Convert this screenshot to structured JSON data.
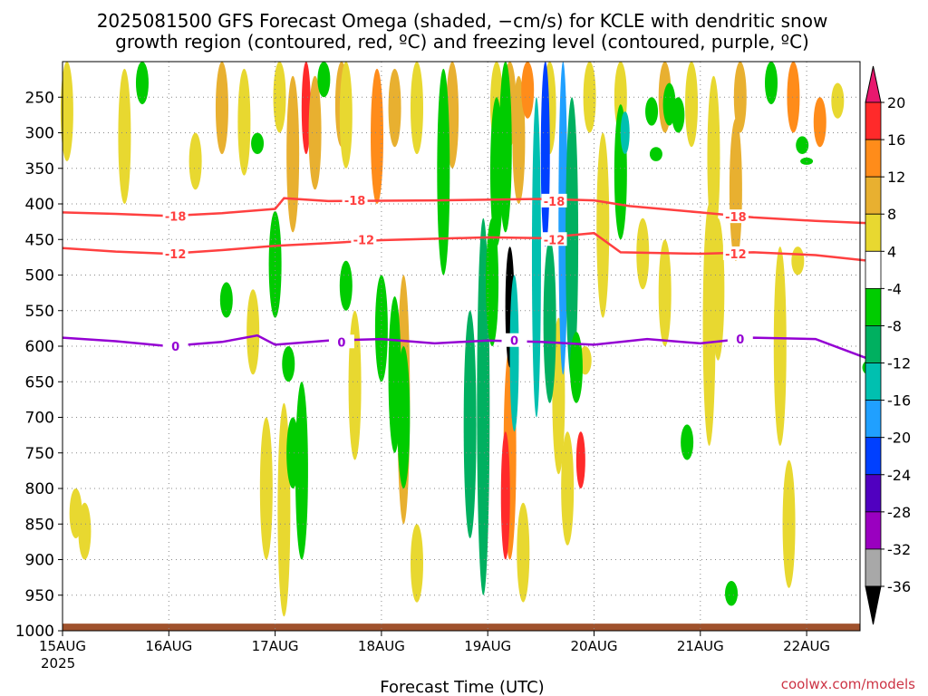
{
  "title_line1": "2025081500 GFS Forecast Omega (shaded, −cm/s) for KCLE with dendritic snow",
  "title_line2": "growth region (contoured, red, ºC) and freezing level (contoured, purple, ºC)",
  "xlabel": "Forecast Time (UTC)",
  "credit": "coolwx.com/models",
  "colors": {
    "dgz": "#ff4040",
    "freezing": "#9400d3",
    "ground": "#a0522d",
    "grid": "#888888"
  },
  "chart_data": {
    "type": "heatmap",
    "x_ticks": [
      {
        "label": "15AUG",
        "sublabel": "2025",
        "t": 0
      },
      {
        "label": "16AUG",
        "t": 24
      },
      {
        "label": "17AUG",
        "t": 48
      },
      {
        "label": "18AUG",
        "t": 72
      },
      {
        "label": "19AUG",
        "t": 96
      },
      {
        "label": "20AUG",
        "t": 120
      },
      {
        "label": "21AUG",
        "t": 144
      },
      {
        "label": "22AUG",
        "t": 168
      }
    ],
    "x_range_hours": [
      0,
      182
    ],
    "y_ticks": [
      250,
      300,
      350,
      400,
      450,
      500,
      550,
      600,
      650,
      700,
      750,
      800,
      850,
      900,
      950,
      1000
    ],
    "y_range_hpa": [
      200,
      1000
    ],
    "colorbar": {
      "labels": [
        "20",
        "16",
        "12",
        "8",
        "4",
        "-4",
        "-8",
        "-12",
        "-16",
        "-20",
        "-24",
        "-28",
        "-32",
        "-36"
      ],
      "colors": [
        "#ff2a2a",
        "#ff8c1a",
        "#e8b030",
        "#e8d830",
        "#ffffff",
        "#00cc00",
        "#00b060",
        "#00c0b0",
        "#20a0ff",
        "#0040ff",
        "#5000c0",
        "#9a00c0",
        "#a8a8a8"
      ],
      "top_color": "#e8186e",
      "bottom_color": "#000000"
    },
    "contours": [
      {
        "label": "-18",
        "points": [
          [
            0,
            412
          ],
          [
            12,
            414
          ],
          [
            24,
            417
          ],
          [
            36,
            413
          ],
          [
            48,
            407
          ],
          [
            50,
            392
          ],
          [
            60,
            396
          ],
          [
            84,
            395
          ],
          [
            108,
            393
          ],
          [
            120,
            395
          ],
          [
            128,
            403
          ],
          [
            144,
            412
          ],
          [
            156,
            419
          ],
          [
            170,
            424
          ],
          [
            182,
            427
          ]
        ]
      },
      {
        "label": "-12",
        "points": [
          [
            0,
            462
          ],
          [
            12,
            467
          ],
          [
            24,
            470
          ],
          [
            36,
            465
          ],
          [
            48,
            459
          ],
          [
            60,
            455
          ],
          [
            72,
            451
          ],
          [
            96,
            447
          ],
          [
            108,
            448
          ],
          [
            120,
            441
          ],
          [
            126,
            468
          ],
          [
            144,
            470
          ],
          [
            156,
            468
          ],
          [
            170,
            472
          ],
          [
            182,
            480
          ]
        ]
      },
      {
        "label": "0",
        "points": [
          [
            0,
            588
          ],
          [
            12,
            593
          ],
          [
            24,
            600
          ],
          [
            36,
            594
          ],
          [
            44,
            585
          ],
          [
            48,
            598
          ],
          [
            60,
            592
          ],
          [
            72,
            590
          ],
          [
            84,
            596
          ],
          [
            96,
            592
          ],
          [
            108,
            594
          ],
          [
            120,
            598
          ],
          [
            132,
            590
          ],
          [
            144,
            596
          ],
          [
            156,
            588
          ],
          [
            170,
            590
          ],
          [
            182,
            618
          ]
        ]
      }
    ],
    "contour_label_positions": [
      {
        "label": "-18",
        "t": 25.5,
        "p": 417
      },
      {
        "label": "-18",
        "t": 66,
        "p": 395
      },
      {
        "label": "-18",
        "t": 111,
        "p": 396
      },
      {
        "label": "-18",
        "t": 152,
        "p": 418
      },
      {
        "label": "-12",
        "t": 25.5,
        "p": 470
      },
      {
        "label": "-12",
        "t": 68,
        "p": 450
      },
      {
        "label": "-12",
        "t": 111,
        "p": 450
      },
      {
        "label": "-12",
        "t": 152,
        "p": 470
      },
      {
        "label": "0",
        "t": 25.5,
        "p": 600
      },
      {
        "label": "0",
        "t": 63,
        "p": 594
      },
      {
        "label": "0",
        "t": 102,
        "p": 592
      },
      {
        "label": "0",
        "t": 153,
        "p": 590
      }
    ],
    "omega_blobs": [
      {
        "t": 1,
        "p1": 200,
        "p2": 340,
        "v": 6
      },
      {
        "t": 14,
        "p1": 210,
        "p2": 400,
        "v": 6
      },
      {
        "t": 30,
        "p1": 300,
        "p2": 380,
        "v": 6
      },
      {
        "t": 36,
        "p1": 200,
        "p2": 330,
        "v": 10
      },
      {
        "t": 41,
        "p1": 210,
        "p2": 360,
        "v": 6
      },
      {
        "t": 43,
        "p1": 520,
        "p2": 640,
        "v": 6
      },
      {
        "t": 49,
        "p1": 200,
        "p2": 300,
        "v": 6
      },
      {
        "t": 52,
        "p1": 220,
        "p2": 440,
        "v": 8
      },
      {
        "t": 55,
        "p1": 200,
        "p2": 330,
        "v": 18
      },
      {
        "t": 57,
        "p1": 220,
        "p2": 380,
        "v": 10
      },
      {
        "t": 63,
        "p1": 200,
        "p2": 320,
        "v": 8
      },
      {
        "t": 64,
        "p1": 200,
        "p2": 350,
        "v": 6
      },
      {
        "t": 71,
        "p1": 210,
        "p2": 400,
        "v": 12
      },
      {
        "t": 75,
        "p1": 210,
        "p2": 320,
        "v": 8
      },
      {
        "t": 77,
        "p1": 500,
        "p2": 850,
        "v": 8
      },
      {
        "t": 80,
        "p1": 200,
        "p2": 330,
        "v": 6
      },
      {
        "t": 88,
        "p1": 200,
        "p2": 350,
        "v": 8
      },
      {
        "t": 98,
        "p1": 200,
        "p2": 320,
        "v": 6
      },
      {
        "t": 101,
        "p1": 200,
        "p2": 320,
        "v": 8
      },
      {
        "t": 103,
        "p1": 220,
        "p2": 400,
        "v": 10
      },
      {
        "t": 105,
        "p1": 200,
        "p2": 280,
        "v": 12
      },
      {
        "t": 110,
        "p1": 200,
        "p2": 330,
        "v": 6
      },
      {
        "t": 119,
        "p1": 200,
        "p2": 300,
        "v": 6
      },
      {
        "t": 122,
        "p1": 300,
        "p2": 560,
        "v": 6
      },
      {
        "t": 126,
        "p1": 200,
        "p2": 300,
        "v": 6
      },
      {
        "t": 131,
        "p1": 420,
        "p2": 520,
        "v": 6
      },
      {
        "t": 136,
        "p1": 200,
        "p2": 300,
        "v": 10
      },
      {
        "t": 142,
        "p1": 200,
        "p2": 320,
        "v": 6
      },
      {
        "t": 147,
        "p1": 220,
        "p2": 450,
        "v": 6
      },
      {
        "t": 152,
        "p1": 280,
        "p2": 480,
        "v": 10
      },
      {
        "t": 153,
        "p1": 200,
        "p2": 300,
        "v": 8
      },
      {
        "t": 165,
        "p1": 200,
        "p2": 300,
        "v": 12
      },
      {
        "t": 166,
        "p1": 460,
        "p2": 500,
        "v": 6
      },
      {
        "t": 171,
        "p1": 250,
        "p2": 320,
        "v": 12
      },
      {
        "t": 175,
        "p1": 230,
        "p2": 280,
        "v": 6
      },
      {
        "t": 3,
        "p1": 800,
        "p2": 870,
        "v": 6
      },
      {
        "t": 5,
        "p1": 820,
        "p2": 900,
        "v": 6
      },
      {
        "t": 46,
        "p1": 700,
        "p2": 900,
        "v": 6
      },
      {
        "t": 50,
        "p1": 680,
        "p2": 980,
        "v": 6
      },
      {
        "t": 66,
        "p1": 550,
        "p2": 760,
        "v": 6
      },
      {
        "t": 101,
        "p1": 600,
        "p2": 900,
        "v": 12
      },
      {
        "t": 100,
        "p1": 720,
        "p2": 900,
        "v": 18
      },
      {
        "t": 112,
        "p1": 560,
        "p2": 780,
        "v": 6
      },
      {
        "t": 117,
        "p1": 720,
        "p2": 800,
        "v": 16
      },
      {
        "t": 114,
        "p1": 720,
        "p2": 880,
        "v": 6
      },
      {
        "t": 146,
        "p1": 400,
        "p2": 740,
        "v": 6
      },
      {
        "t": 148,
        "p1": 420,
        "p2": 620,
        "v": 6
      },
      {
        "t": 162,
        "p1": 460,
        "p2": 740,
        "v": 6
      },
      {
        "t": 164,
        "p1": 760,
        "p2": 940,
        "v": 6
      },
      {
        "t": 136,
        "p1": 450,
        "p2": 600,
        "v": 6
      },
      {
        "t": 80,
        "p1": 850,
        "p2": 960,
        "v": 6
      },
      {
        "t": 104,
        "p1": 820,
        "p2": 960,
        "v": 6
      },
      {
        "t": 118,
        "p1": 600,
        "p2": 640,
        "v": 6
      },
      {
        "t": 18,
        "p1": 200,
        "p2": 260,
        "v": -6
      },
      {
        "t": 44,
        "p1": 300,
        "p2": 330,
        "v": -6
      },
      {
        "t": 48,
        "p1": 410,
        "p2": 560,
        "v": -6
      },
      {
        "t": 51,
        "p1": 600,
        "p2": 650,
        "v": -6
      },
      {
        "t": 52,
        "p1": 700,
        "p2": 800,
        "v": -6
      },
      {
        "t": 54,
        "p1": 650,
        "p2": 900,
        "v": -6
      },
      {
        "t": 59,
        "p1": 200,
        "p2": 250,
        "v": -6
      },
      {
        "t": 64,
        "p1": 480,
        "p2": 550,
        "v": -6
      },
      {
        "t": 72,
        "p1": 500,
        "p2": 650,
        "v": -6
      },
      {
        "t": 75,
        "p1": 530,
        "p2": 750,
        "v": -6
      },
      {
        "t": 77,
        "p1": 600,
        "p2": 800,
        "v": -6
      },
      {
        "t": 86,
        "p1": 210,
        "p2": 500,
        "v": -6
      },
      {
        "t": 92,
        "p1": 550,
        "p2": 870,
        "v": -10
      },
      {
        "t": 95,
        "p1": 420,
        "p2": 950,
        "v": -8
      },
      {
        "t": 97,
        "p1": 420,
        "p2": 600,
        "v": -6
      },
      {
        "t": 98,
        "p1": 250,
        "p2": 460,
        "v": -6
      },
      {
        "t": 100,
        "p1": 200,
        "p2": 440,
        "v": -6
      },
      {
        "t": 101,
        "p1": 460,
        "p2": 630,
        "v": -36
      },
      {
        "t": 102,
        "p1": 500,
        "p2": 720,
        "v": -14
      },
      {
        "t": 107,
        "p1": 250,
        "p2": 700,
        "v": -14
      },
      {
        "t": 109,
        "p1": 200,
        "p2": 460,
        "v": -22
      },
      {
        "t": 110,
        "p1": 450,
        "p2": 680,
        "v": -10
      },
      {
        "t": 113,
        "p1": 200,
        "p2": 640,
        "v": -16
      },
      {
        "t": 115,
        "p1": 250,
        "p2": 650,
        "v": -8
      },
      {
        "t": 116,
        "p1": 580,
        "p2": 680,
        "v": -6
      },
      {
        "t": 126,
        "p1": 260,
        "p2": 450,
        "v": -6
      },
      {
        "t": 127,
        "p1": 270,
        "p2": 330,
        "v": -14
      },
      {
        "t": 133,
        "p1": 250,
        "p2": 290,
        "v": -6
      },
      {
        "t": 134,
        "p1": 320,
        "p2": 340,
        "v": -6
      },
      {
        "t": 137,
        "p1": 230,
        "p2": 290,
        "v": -6
      },
      {
        "t": 139,
        "p1": 250,
        "p2": 300,
        "v": -6
      },
      {
        "t": 141,
        "p1": 710,
        "p2": 760,
        "v": -6
      },
      {
        "t": 160,
        "p1": 200,
        "p2": 260,
        "v": -6
      },
      {
        "t": 167,
        "p1": 305,
        "p2": 330,
        "v": -6
      },
      {
        "t": 168,
        "p1": 335,
        "p2": 345,
        "v": -6
      },
      {
        "t": 182,
        "p1": 620,
        "p2": 640,
        "v": -6
      },
      {
        "t": 151,
        "p1": 930,
        "p2": 965,
        "v": -6
      },
      {
        "t": 37,
        "p1": 510,
        "p2": 560,
        "v": -6
      }
    ]
  }
}
